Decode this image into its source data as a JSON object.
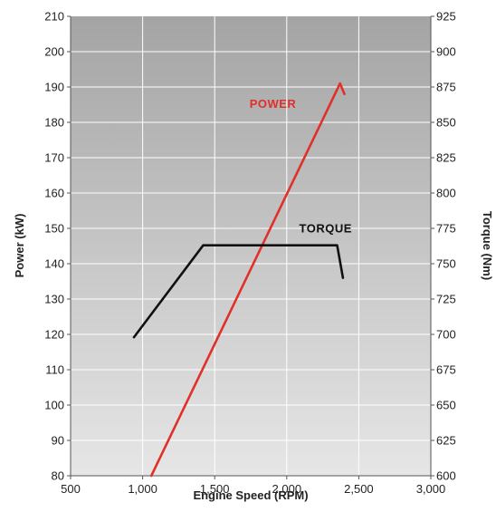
{
  "chart_data": {
    "type": "line",
    "xlabel": "Engine Speed (RPM)",
    "ylabel": "Power (kW)",
    "y2label": "Torque (Nm)",
    "xlim": [
      500,
      3000
    ],
    "ylim": [
      80,
      210
    ],
    "y2lim": [
      600,
      925
    ],
    "grid": true,
    "x_ticks": [
      "500",
      "1,000",
      "1,500",
      "2,000",
      "2,500",
      "3,000"
    ],
    "y_ticks": [
      "80",
      "90",
      "100",
      "110",
      "120",
      "130",
      "140",
      "150",
      "160",
      "170",
      "180",
      "190",
      "200",
      "210"
    ],
    "y2_ticks": [
      "600",
      "625",
      "650",
      "675",
      "700",
      "725",
      "750",
      "775",
      "800",
      "825",
      "850",
      "875",
      "900",
      "925"
    ],
    "series": [
      {
        "name": "POWER",
        "axis": "left",
        "color": "#e0302a",
        "x": [
          1060,
          2370,
          2400
        ],
        "y": [
          80,
          191,
          188
        ]
      },
      {
        "name": "TORQUE",
        "axis": "right",
        "color": "#111111",
        "x": [
          940,
          1420,
          2350,
          2390
        ],
        "y": [
          698,
          763,
          763,
          740
        ]
      }
    ]
  }
}
